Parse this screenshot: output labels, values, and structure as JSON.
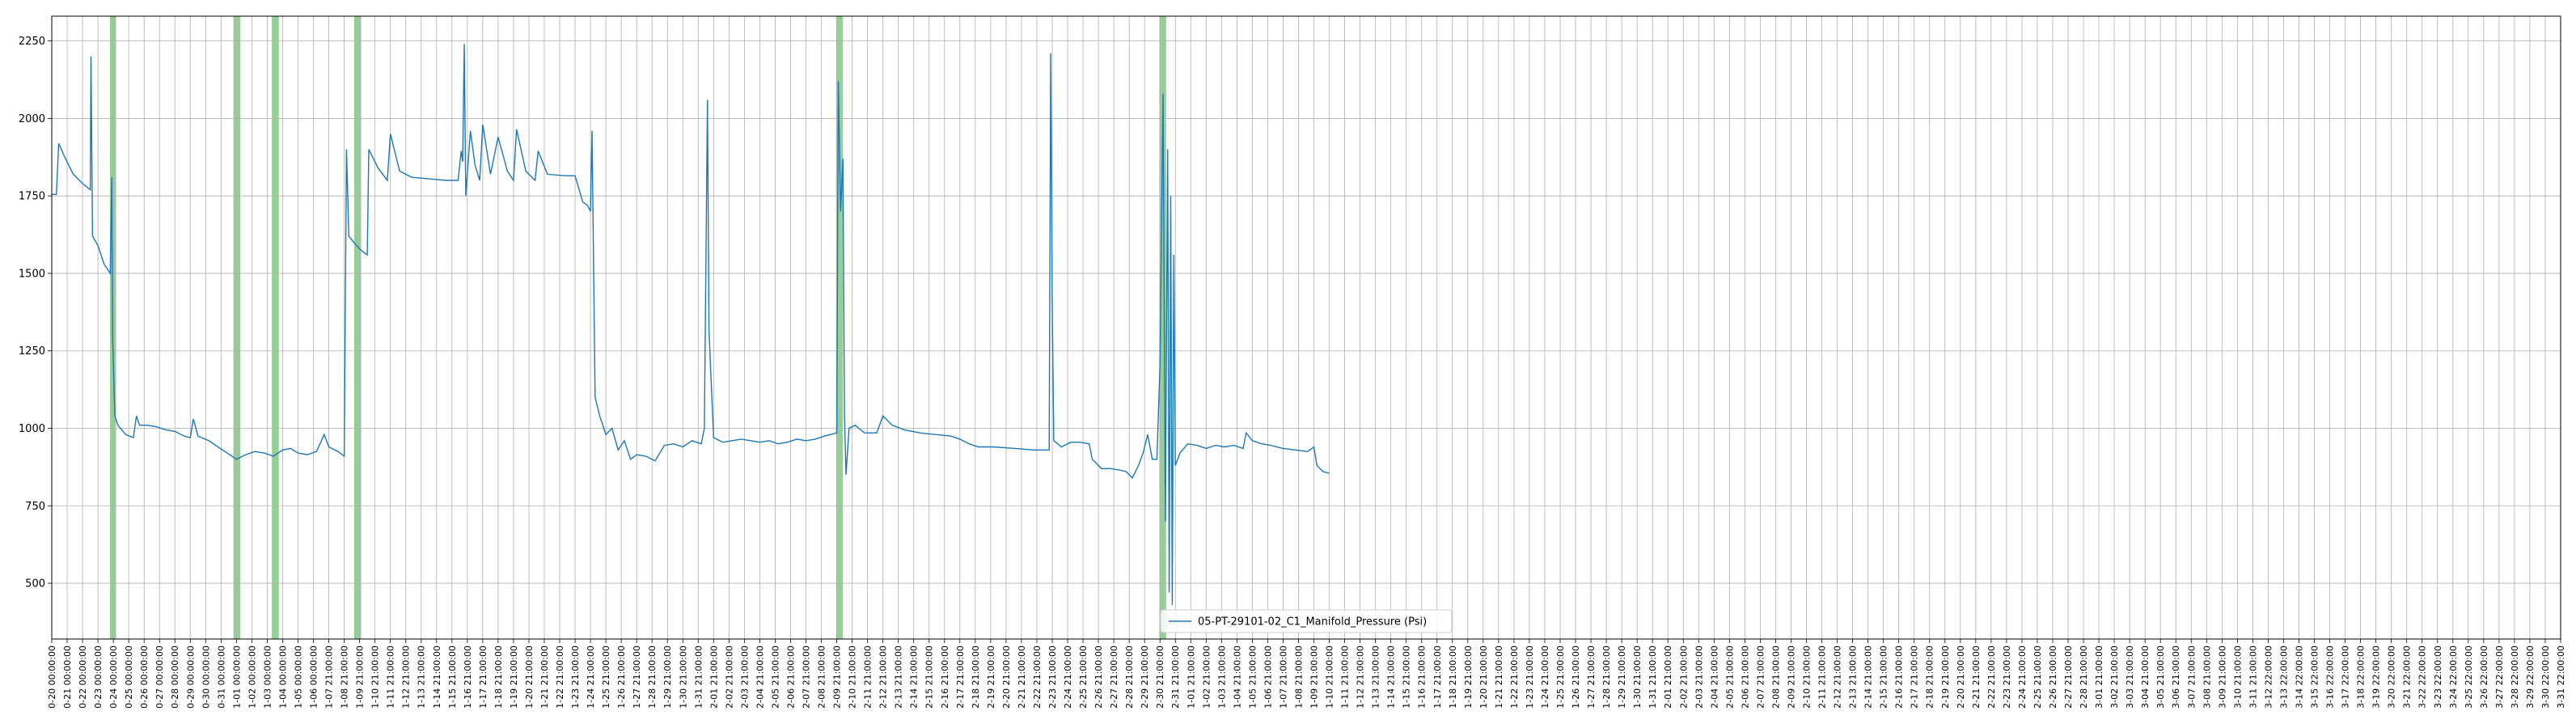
{
  "chart_data": {
    "type": "line",
    "title": "",
    "xlabel": "",
    "ylabel": "",
    "ylim": [
      320,
      2330
    ],
    "yticks": [
      500,
      750,
      1000,
      1250,
      1500,
      1750,
      2000,
      2250
    ],
    "grid": true,
    "legend_position": "bottom-center",
    "series": [
      {
        "name": "05-PT-29101-02_C1_Manifold_Pressure (Psi)",
        "color": "#1f77b4",
        "points": [
          [
            0,
            1755
          ],
          [
            0.3,
            1755
          ],
          [
            0.45,
            1920
          ],
          [
            0.8,
            1880
          ],
          [
            1.4,
            1820
          ],
          [
            2.0,
            1790
          ],
          [
            2.5,
            1770
          ],
          [
            2.55,
            2200
          ],
          [
            2.65,
            1620
          ],
          [
            3.0,
            1590
          ],
          [
            3.4,
            1530
          ],
          [
            3.8,
            1500
          ],
          [
            3.9,
            1810
          ],
          [
            3.95,
            1300
          ],
          [
            4.1,
            1040
          ],
          [
            4.3,
            1010
          ],
          [
            4.8,
            980
          ],
          [
            5.3,
            970
          ],
          [
            5.5,
            1040
          ],
          [
            5.7,
            1010
          ],
          [
            6.2,
            1010
          ],
          [
            6.8,
            1005
          ],
          [
            7.4,
            995
          ],
          [
            8.0,
            990
          ],
          [
            8.6,
            975
          ],
          [
            9.0,
            970
          ],
          [
            9.2,
            1030
          ],
          [
            9.5,
            975
          ],
          [
            10.2,
            960
          ],
          [
            10.8,
            940
          ],
          [
            11.4,
            920
          ],
          [
            12.0,
            900
          ],
          [
            12.6,
            915
          ],
          [
            13.2,
            925
          ],
          [
            13.8,
            920
          ],
          [
            14.4,
            910
          ],
          [
            15.0,
            930
          ],
          [
            15.5,
            935
          ],
          [
            16.0,
            920
          ],
          [
            16.6,
            915
          ],
          [
            17.2,
            925
          ],
          [
            17.7,
            980
          ],
          [
            18.0,
            940
          ],
          [
            18.6,
            925
          ],
          [
            19.0,
            910
          ],
          [
            19.15,
            1900
          ],
          [
            19.3,
            1620
          ],
          [
            19.8,
            1590
          ],
          [
            20.2,
            1570
          ],
          [
            20.5,
            1560
          ],
          [
            20.6,
            1900
          ],
          [
            21.2,
            1840
          ],
          [
            21.8,
            1800
          ],
          [
            22.0,
            1950
          ],
          [
            22.6,
            1830
          ],
          [
            23.4,
            1810
          ],
          [
            24.5,
            1805
          ],
          [
            25.6,
            1800
          ],
          [
            26.4,
            1800
          ],
          [
            26.6,
            1895
          ],
          [
            26.7,
            1860
          ],
          [
            26.8,
            2240
          ],
          [
            26.9,
            1750
          ],
          [
            27.2,
            1960
          ],
          [
            27.5,
            1850
          ],
          [
            27.8,
            1800
          ],
          [
            28.0,
            1980
          ],
          [
            28.5,
            1820
          ],
          [
            29.0,
            1940
          ],
          [
            29.6,
            1830
          ],
          [
            30.0,
            1800
          ],
          [
            30.2,
            1965
          ],
          [
            30.8,
            1830
          ],
          [
            31.4,
            1800
          ],
          [
            31.6,
            1895
          ],
          [
            32.2,
            1820
          ],
          [
            33.4,
            1815
          ],
          [
            34.0,
            1815
          ],
          [
            34.5,
            1730
          ],
          [
            34.8,
            1720
          ],
          [
            35.0,
            1700
          ],
          [
            35.1,
            1960
          ],
          [
            35.3,
            1100
          ],
          [
            35.6,
            1040
          ],
          [
            36.0,
            980
          ],
          [
            36.4,
            1000
          ],
          [
            36.8,
            930
          ],
          [
            37.2,
            960
          ],
          [
            37.6,
            900
          ],
          [
            38.0,
            915
          ],
          [
            38.6,
            910
          ],
          [
            39.2,
            895
          ],
          [
            39.8,
            945
          ],
          [
            40.4,
            950
          ],
          [
            41.0,
            940
          ],
          [
            41.6,
            960
          ],
          [
            42.2,
            950
          ],
          [
            42.4,
            1000
          ],
          [
            42.6,
            2060
          ],
          [
            42.7,
            1320
          ],
          [
            42.8,
            1200
          ],
          [
            43.0,
            970
          ],
          [
            43.6,
            955
          ],
          [
            44.2,
            960
          ],
          [
            44.8,
            965
          ],
          [
            45.4,
            960
          ],
          [
            46.0,
            955
          ],
          [
            46.6,
            960
          ],
          [
            47.2,
            950
          ],
          [
            47.8,
            955
          ],
          [
            48.4,
            965
          ],
          [
            49.0,
            960
          ],
          [
            49.6,
            965
          ],
          [
            50.2,
            975
          ],
          [
            50.6,
            980
          ],
          [
            51.0,
            985
          ],
          [
            51.1,
            2120
          ],
          [
            51.25,
            1700
          ],
          [
            51.4,
            1870
          ],
          [
            51.5,
            1050
          ],
          [
            51.6,
            850
          ],
          [
            51.8,
            1000
          ],
          [
            52.2,
            1010
          ],
          [
            52.8,
            985
          ],
          [
            53.6,
            985
          ],
          [
            54.0,
            1040
          ],
          [
            54.6,
            1010
          ],
          [
            55.4,
            995
          ],
          [
            56.4,
            985
          ],
          [
            57.4,
            980
          ],
          [
            58.4,
            975
          ],
          [
            59.0,
            965
          ],
          [
            59.6,
            950
          ],
          [
            60.2,
            940
          ],
          [
            61.2,
            940
          ],
          [
            62.6,
            935
          ],
          [
            63.8,
            930
          ],
          [
            64.8,
            930
          ],
          [
            64.9,
            2210
          ],
          [
            65.0,
            1400
          ],
          [
            65.1,
            960
          ],
          [
            65.6,
            940
          ],
          [
            66.2,
            955
          ],
          [
            66.8,
            955
          ],
          [
            67.4,
            950
          ],
          [
            67.6,
            900
          ],
          [
            68.2,
            870
          ],
          [
            68.8,
            870
          ],
          [
            69.4,
            865
          ],
          [
            69.8,
            860
          ],
          [
            70.2,
            840
          ],
          [
            70.6,
            880
          ],
          [
            70.9,
            920
          ],
          [
            71.2,
            980
          ],
          [
            71.5,
            900
          ],
          [
            71.8,
            900
          ],
          [
            72.0,
            1200
          ],
          [
            72.2,
            2080
          ],
          [
            72.35,
            700
          ],
          [
            72.5,
            1900
          ],
          [
            72.6,
            470
          ],
          [
            72.7,
            1750
          ],
          [
            72.8,
            430
          ],
          [
            72.9,
            1560
          ],
          [
            73.0,
            880
          ],
          [
            73.3,
            920
          ],
          [
            73.8,
            950
          ],
          [
            74.4,
            945
          ],
          [
            75.0,
            935
          ],
          [
            75.6,
            945
          ],
          [
            76.2,
            940
          ],
          [
            76.8,
            945
          ],
          [
            77.4,
            935
          ],
          [
            77.6,
            985
          ],
          [
            78.0,
            960
          ],
          [
            78.6,
            950
          ],
          [
            79.2,
            945
          ],
          [
            80.0,
            935
          ],
          [
            80.8,
            930
          ],
          [
            81.6,
            925
          ],
          [
            82.0,
            940
          ],
          [
            82.2,
            880
          ],
          [
            82.6,
            860
          ],
          [
            83.0,
            855
          ]
        ]
      }
    ],
    "highlight_bands": [
      {
        "start": 3.78,
        "end": 4.18
      },
      {
        "start": 11.8,
        "end": 12.25
      },
      {
        "start": 14.3,
        "end": 14.75
      },
      {
        "start": 19.65,
        "end": 20.1
      },
      {
        "start": 50.96,
        "end": 51.4
      },
      {
        "start": 71.96,
        "end": 72.4
      }
    ],
    "x_tick_labels": [
      "0-20 00:00:00",
      "0-21 00:00:00",
      "0-22 00:00:00",
      "0-23 00:00:00",
      "0-24 00:00:00",
      "0-25 00:00:00",
      "0-26 00:00:00",
      "0-27 00:00:00",
      "0-28 00:00:00",
      "0-29 00:00:00",
      "0-30 00:00:00",
      "0-31 00:00:00",
      "1-01 00:00:00",
      "1-02 00:00:00",
      "1-03 00:00:00",
      "1-04 00:00:00",
      "1-05 00:00:00",
      "1-06 00:00:00",
      "1-07 21:00:00",
      "1-08 21:00:00",
      "1-09 21:00:00",
      "1-10 21:00:00",
      "1-11 21:00:00",
      "1-12 21:00:00",
      "1-13 21:00:00",
      "1-14 21:00:00",
      "1-15 21:00:00",
      "1-16 21:00:00",
      "1-17 21:00:00",
      "1-18 21:00:00",
      "1-19 21:00:00",
      "1-20 21:00:00",
      "1-21 21:00:00",
      "1-22 21:00:00",
      "1-23 21:00:00",
      "1-24 21:00:00",
      "1-25 21:00:00",
      "1-26 21:00:00",
      "1-27 21:00:00",
      "1-28 21:00:00",
      "1-29 21:00:00",
      "1-30 21:00:00",
      "1-31 21:00:00",
      "2-01 21:00:00",
      "2-02 21:00:00",
      "2-03 21:00:00",
      "2-04 21:00:00",
      "2-05 21:00:00",
      "2-06 21:00:00",
      "2-07 21:00:00",
      "2-08 21:00:00",
      "2-09 21:00:00",
      "2-10 21:00:00",
      "2-11 21:00:00",
      "2-12 21:00:00",
      "2-13 21:00:00",
      "2-14 21:00:00",
      "2-15 21:00:00",
      "2-16 21:00:00",
      "2-17 21:00:00",
      "2-18 21:00:00",
      "2-19 21:00:00",
      "2-20 21:00:00",
      "2-21 21:00:00",
      "2-22 21:00:00",
      "2-23 21:00:00",
      "2-24 21:00:00",
      "2-25 21:00:00",
      "2-26 21:00:00",
      "2-27 21:00:00",
      "2-28 21:00:00",
      "2-29 21:00:00",
      "2-30 21:00:00",
      "2-31 21:00:00",
      "1-01 21:00:00",
      "1-02 21:00:00",
      "1-03 21:00:00",
      "1-04 21:00:00",
      "1-05 21:00:00",
      "1-06 21:00:00",
      "1-07 21:00:00",
      "1-08 21:00:00",
      "1-09 21:00:00",
      "1-10 21:00:00",
      "1-11 21:00:00",
      "1-12 21:00:00",
      "1-13 21:00:00",
      "1-14 21:00:00",
      "1-15 21:00:00",
      "1-16 21:00:00",
      "1-17 21:00:00",
      "1-18 21:00:00",
      "1-19 21:00:00",
      "1-20 21:00:00",
      "1-21 21:00:00",
      "1-22 21:00:00",
      "1-23 21:00:00",
      "1-24 21:00:00",
      "1-25 21:00:00",
      "1-26 21:00:00",
      "1-27 21:00:00",
      "1-28 21:00:00",
      "1-29 21:00:00",
      "1-30 21:00:00",
      "1-31 21:00:00",
      "2-01 21:00:00",
      "2-02 21:00:00",
      "2-03 21:00:00",
      "2-04 21:00:00",
      "2-05 21:00:00",
      "2-06 21:00:00",
      "2-07 21:00:00",
      "2-08 21:00:00",
      "2-09 21:00:00",
      "2-10 21:00:00",
      "2-11 21:00:00",
      "2-12 21:00:00",
      "2-13 21:00:00",
      "2-14 21:00:00",
      "2-15 21:00:00",
      "2-16 21:00:00",
      "2-17 21:00:00",
      "2-18 21:00:00",
      "2-19 21:00:00",
      "2-20 21:00:00",
      "2-21 21:00:00",
      "2-22 21:00:00",
      "2-23 21:00:00",
      "2-24 21:00:00",
      "2-25 21:00:00",
      "2-26 21:00:00",
      "2-27 21:00:00",
      "2-28 21:00:00",
      "3-01 21:00:00",
      "3-02 21:00:00",
      "3-03 21:00:00",
      "3-04 21:00:00",
      "3-05 21:00:00",
      "3-06 21:00:00",
      "3-07 21:00:00",
      "3-08 21:00:00",
      "3-09 21:00:00",
      "3-10 21:00:00",
      "3-11 21:00:00",
      "3-12 22:00:00",
      "3-13 22:00:00",
      "3-14 22:00:00",
      "3-15 22:00:00",
      "3-16 22:00:00",
      "3-17 22:00:00",
      "3-18 22:00:00",
      "3-19 22:00:00",
      "3-20 22:00:00",
      "3-21 22:00:00",
      "3-22 22:00:00",
      "3-23 22:00:00",
      "3-24 22:00:00",
      "3-25 22:00:00",
      "3-26 22:00:00",
      "3-27 22:00:00",
      "3-28 22:00:00",
      "3-29 22:00:00",
      "3-30 22:00:00",
      "3-31 22:00:00"
    ],
    "colors": {
      "line": "#1f77b4",
      "band": "#2ca02c",
      "grid": "#b0b0b0",
      "axes": "#000000"
    }
  }
}
